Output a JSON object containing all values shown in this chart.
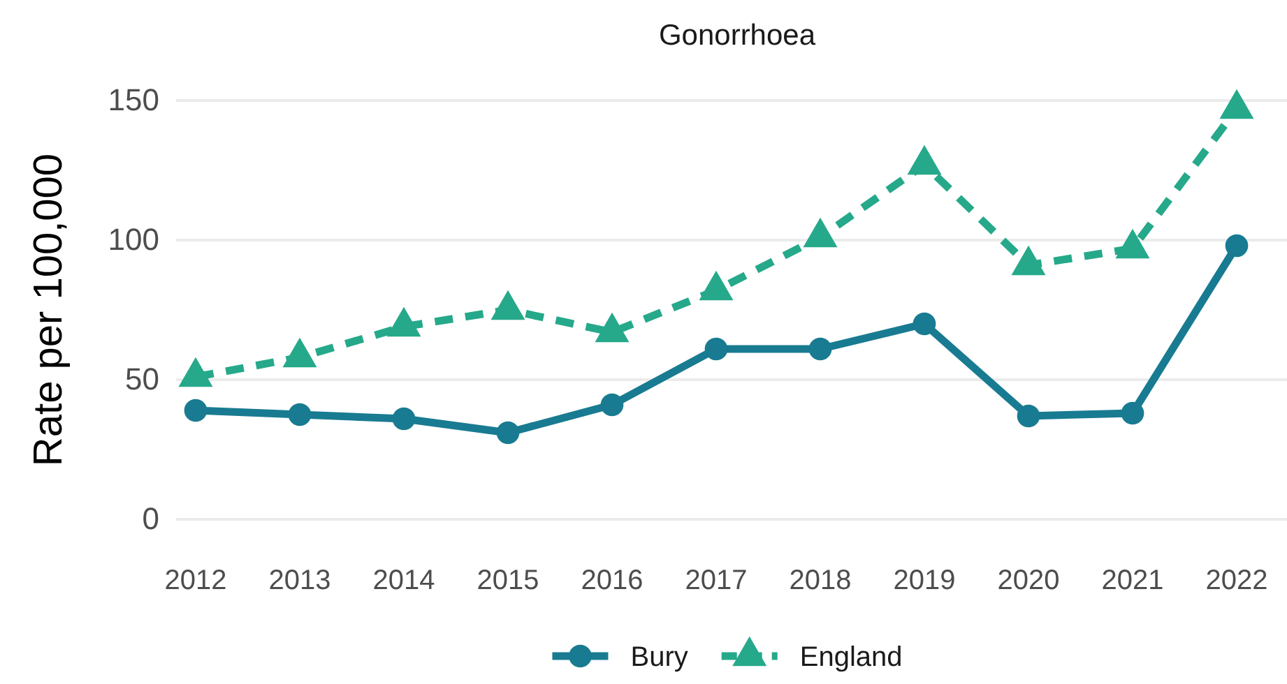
{
  "chart_data": {
    "type": "line",
    "title": "Gonorrhoea",
    "ylabel": "Rate per 100,000",
    "categories": [
      "2012",
      "2013",
      "2014",
      "2015",
      "2016",
      "2017",
      "2018",
      "2019",
      "2020",
      "2021",
      "2022"
    ],
    "series": [
      {
        "name": "Bury",
        "color": "#187b91",
        "marker": "circle",
        "line_style": "solid",
        "values": [
          39,
          37.5,
          36,
          31,
          41,
          61,
          61,
          70,
          37,
          38,
          98
        ]
      },
      {
        "name": "England",
        "color": "#25a98a",
        "marker": "triangle",
        "line_style": "dashed",
        "values": [
          51,
          58,
          69,
          75,
          67,
          82,
          101,
          127,
          91,
          97,
          147
        ]
      }
    ],
    "ylim": [
      0,
      150
    ],
    "yticks": [
      0,
      50,
      100,
      150
    ],
    "grid": "y",
    "legend": "bottom"
  }
}
